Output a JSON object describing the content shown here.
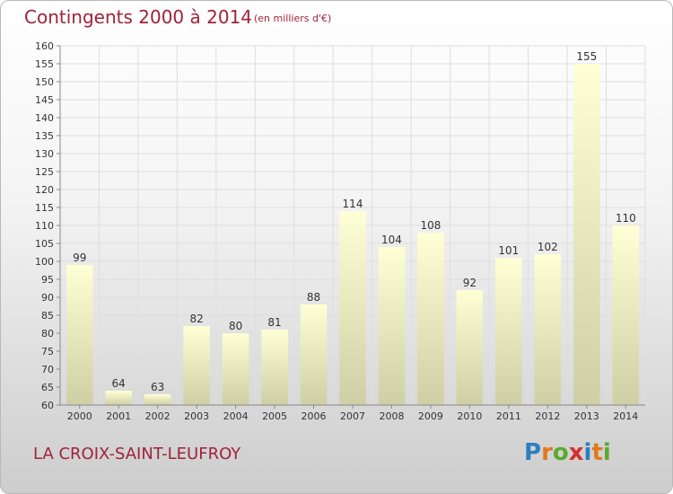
{
  "header": {
    "title": "Contingents 2000 à 2014",
    "subtitle": "(en milliers d'€)"
  },
  "footer": {
    "commune": "LA CROIX-SAINT-LEUFROY",
    "logo_letters": [
      "P",
      "r",
      "o",
      "x",
      "i",
      "t",
      "i"
    ],
    "logo_colors": [
      "#2a7fc0",
      "#e07a1f",
      "#5aaa2d",
      "#d42f2f",
      "#2a7fc0",
      "#e07a1f",
      "#5aaa2d"
    ]
  },
  "colors": {
    "title": "#a0223a",
    "bar_top": "#ffffd6",
    "bar_bottom": "#cfcfa6",
    "grid": "#dedede",
    "axis": "#888888",
    "text": "#333333"
  },
  "chart_data": {
    "type": "bar",
    "title": "Contingents 2000 à 2014",
    "subtitle": "(en milliers d'€)",
    "categories": [
      "2000",
      "2001",
      "2002",
      "2003",
      "2004",
      "2005",
      "2006",
      "2007",
      "2008",
      "2009",
      "2010",
      "2011",
      "2012",
      "2013",
      "2014"
    ],
    "values": [
      99,
      64,
      63,
      82,
      80,
      81,
      88,
      114,
      104,
      108,
      92,
      101,
      102,
      155,
      110
    ],
    "ylim": [
      60,
      160
    ],
    "ytick_step": 5,
    "grid": true,
    "legend": "none"
  }
}
